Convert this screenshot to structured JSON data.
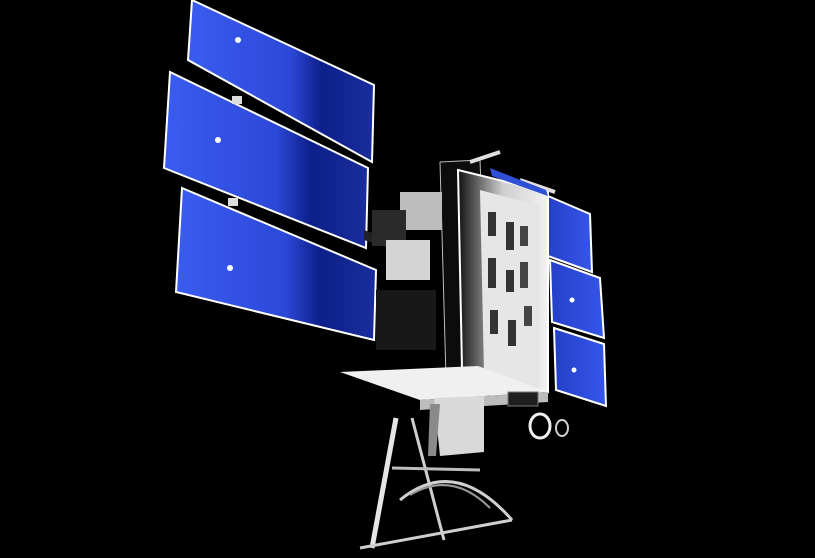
{
  "scene": {
    "subject": "satellite-render",
    "background_color": "#000000",
    "panel_color": "#2f4fd6",
    "panel_shadow_color": "#0a1a7a",
    "body_color": "#e8e8e8",
    "body_shadow_color": "#1a1a1a"
  }
}
